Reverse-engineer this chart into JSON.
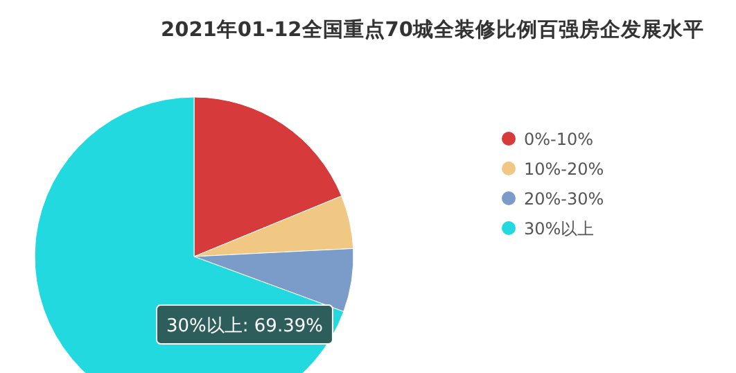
{
  "chart_data": {
    "type": "pie",
    "title": "2021年01-12全国重点70城全装修比例百强房企发展水平",
    "categories": [
      "0%-10%",
      "10%-20%",
      "20%-30%",
      "30%以上"
    ],
    "values": [
      18.8,
      5.4,
      6.41,
      69.39
    ],
    "colors": [
      "#d63a3a",
      "#f0c783",
      "#7b9bc9",
      "#22d9df"
    ],
    "legend": "right",
    "annotations": [
      "30%以上: 69.39%"
    ]
  }
}
